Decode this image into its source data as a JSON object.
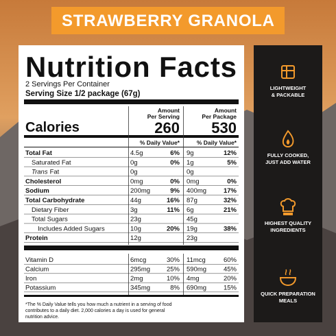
{
  "banner": "STRAWBERRY GRANOLA",
  "label": {
    "heading": "Nutrition Facts",
    "servings": "2 Servings Per Container",
    "serving_size": "Serving Size 1/2 package (67g)",
    "col1": [
      "Amount",
      "Per Serving"
    ],
    "col2": [
      "Amount",
      "Per Package"
    ],
    "calories_label": "Calories",
    "calories": [
      "260",
      "530"
    ],
    "dv_header": "% Daily Value*",
    "rows": [
      {
        "name": "Total Fat",
        "bold": true,
        "indent": 0,
        "cells": [
          "4.5g",
          "6%",
          "9g",
          "12%"
        ]
      },
      {
        "name": "Saturated Fat",
        "bold": false,
        "indent": 1,
        "cells": [
          "0g",
          "0%",
          "1g",
          "5%"
        ]
      },
      {
        "italic": "Trans",
        "name": "Fat",
        "bold": false,
        "indent": 1,
        "cells": [
          "0g",
          null,
          "0g",
          null
        ]
      },
      {
        "name": "Cholesterol",
        "bold": true,
        "indent": 0,
        "cells": [
          "0mg",
          "0%",
          "0mg",
          "0%"
        ]
      },
      {
        "name": "Sodium",
        "bold": true,
        "indent": 0,
        "cells": [
          "200mg",
          "9%",
          "400mg",
          "17%"
        ]
      },
      {
        "name": "Total Carbohydrate",
        "bold": true,
        "indent": 0,
        "cells": [
          "44g",
          "16%",
          "87g",
          "32%"
        ]
      },
      {
        "name": "Dietary Fiber",
        "bold": false,
        "indent": 1,
        "cells": [
          "3g",
          "11%",
          "6g",
          "21%"
        ]
      },
      {
        "name": "Total Sugars",
        "bold": false,
        "indent": 1,
        "cells": [
          "23g",
          null,
          "45g",
          null
        ]
      },
      {
        "name": "Includes Added Sugars",
        "bold": false,
        "indent": 2,
        "cells": [
          "10g",
          "20%",
          "19g",
          "38%"
        ]
      },
      {
        "name": "Protein",
        "bold": true,
        "indent": 0,
        "cells": [
          "12g",
          null,
          "23g",
          null
        ]
      }
    ],
    "vitamins": [
      {
        "name": "Vitamin D",
        "cells": [
          "6mcg",
          "30%",
          "11mcg",
          "60%"
        ]
      },
      {
        "name": "Calcium",
        "cells": [
          "295mg",
          "25%",
          "590mg",
          "45%"
        ]
      },
      {
        "name": "Iron",
        "cells": [
          "2mg",
          "10%",
          "4mg",
          "20%"
        ]
      },
      {
        "name": "Potassium",
        "cells": [
          "345mg",
          "8%",
          "690mg",
          "15%"
        ]
      }
    ],
    "footnote": [
      "*The % Daily Value tells you how much a nutrient in a  serving of food",
      "contributes to a daily diet. 2,000 calories  a day is used for general",
      "nutrition advice."
    ]
  },
  "features": [
    {
      "lines": [
        "LIGHTWEIGHT",
        "& PACKABLE"
      ]
    },
    {
      "lines": [
        "FULLY COOKED,",
        "JUST ADD WATER"
      ]
    },
    {
      "lines": [
        "HIGHEST QUALITY",
        "INGREDIENTS"
      ]
    },
    {
      "lines": [
        "QUICK PREPARATION",
        "MEALS"
      ]
    }
  ]
}
